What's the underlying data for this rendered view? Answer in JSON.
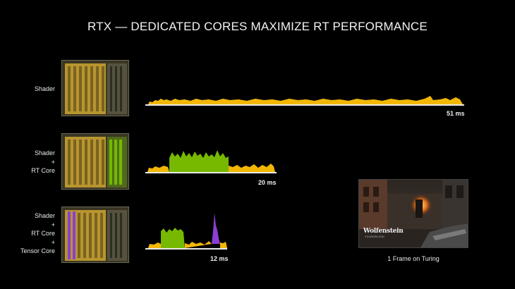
{
  "title": "RTX — DEDICATED CORES MAXIMIZE RT PERFORMANCE",
  "rows": [
    {
      "label_lines": [
        "Shader"
      ],
      "time": "51 ms",
      "units": [
        "shader"
      ]
    },
    {
      "label_lines": [
        "Shader",
        "+",
        "RT Core"
      ],
      "time": "20 ms",
      "units": [
        "shader",
        "rt-core"
      ]
    },
    {
      "label_lines": [
        "Shader",
        "+",
        "RT Core",
        "+",
        "Tensor Core"
      ],
      "time": "12 ms",
      "units": [
        "shader",
        "rt-core",
        "tensor-core"
      ]
    }
  ],
  "colors": {
    "shader": "#f2b705",
    "rt_core": "#76b900",
    "tensor_core": "#8a3fd1",
    "background": "#000000"
  },
  "frame_image": {
    "logo_text": "Wolfenstein",
    "logo_subtext": "YOUNGBLOOD",
    "caption": "1 Frame on Turing"
  }
}
